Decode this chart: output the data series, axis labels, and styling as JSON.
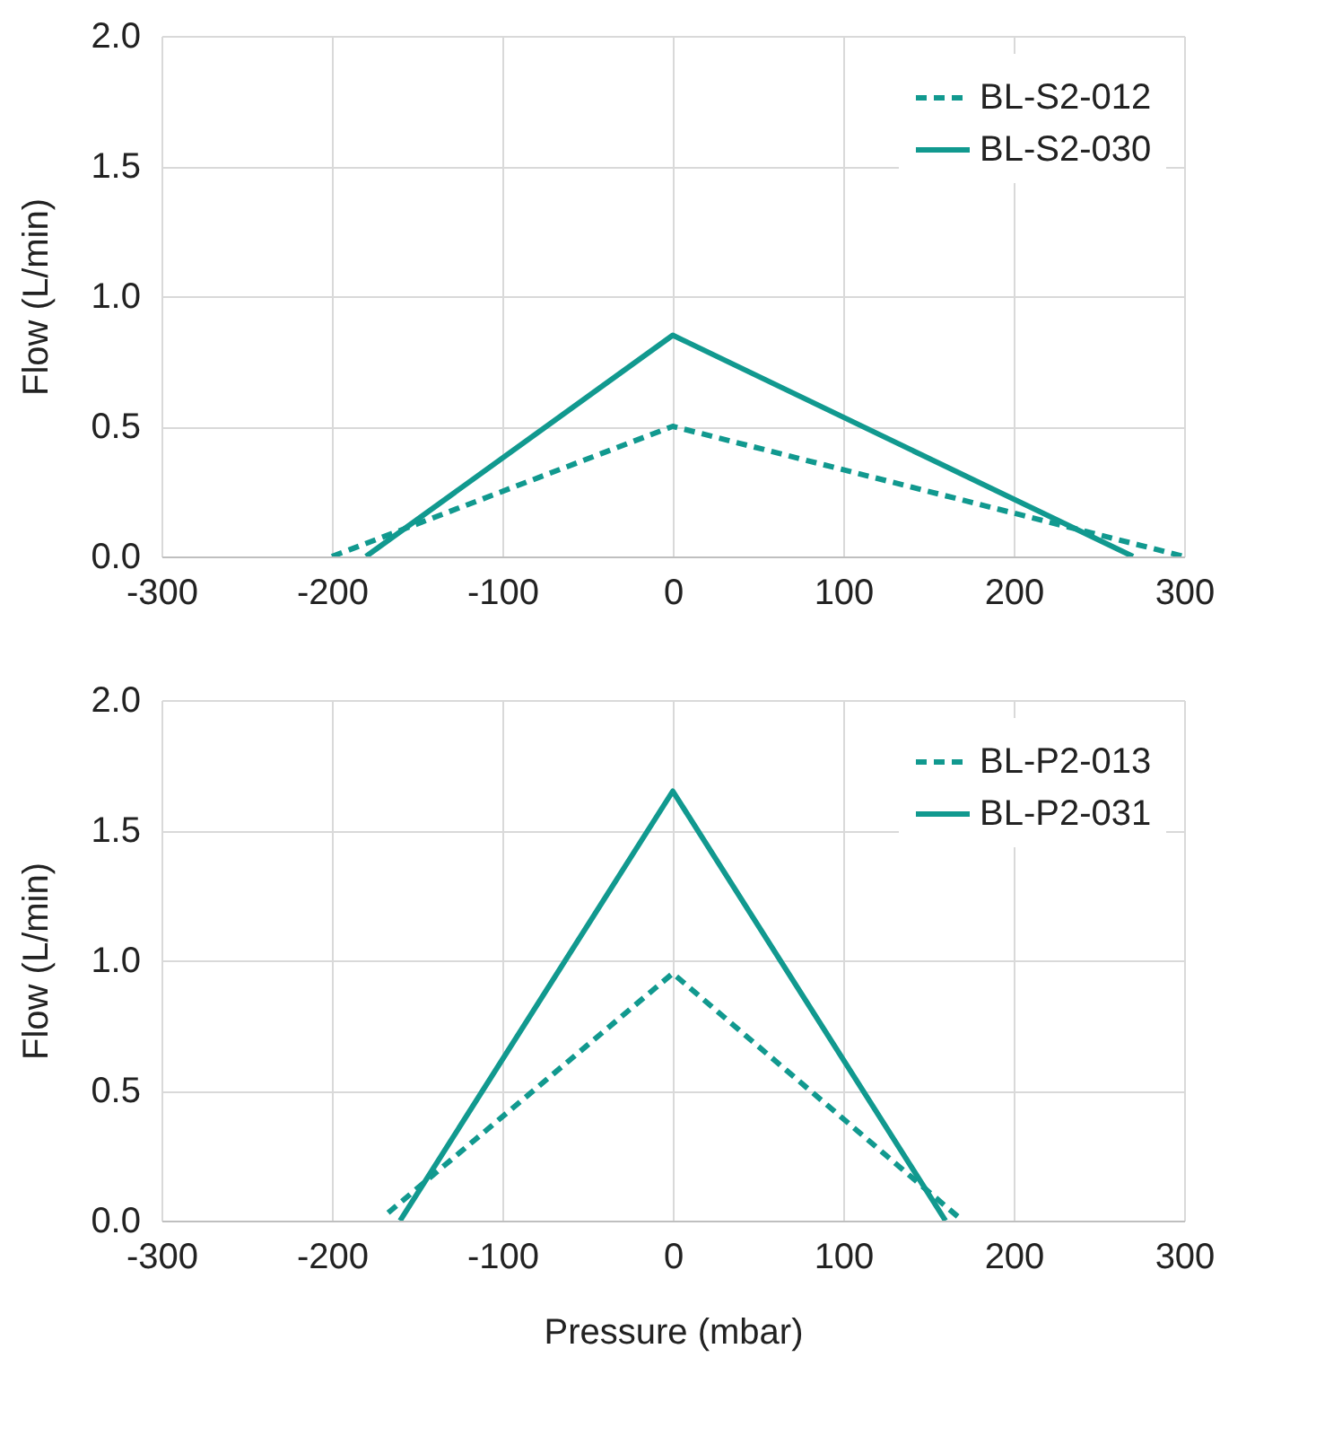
{
  "chart_data": [
    {
      "type": "line",
      "ylabel": "Flow (L/min)",
      "xlim": [
        -300,
        300
      ],
      "xticks": [
        -300,
        -200,
        -100,
        0,
        100,
        200,
        300
      ],
      "ylim": [
        0,
        2
      ],
      "yticks": [
        {
          "value": 0,
          "label": "0.0"
        },
        {
          "value": 0.5,
          "label": "0.5"
        },
        {
          "value": 1,
          "label": "1.0"
        },
        {
          "value": 1.5,
          "label": "1.5"
        },
        {
          "value": 2,
          "label": "2.0"
        }
      ],
      "grid": true,
      "legend": "top right",
      "marker": "none",
      "series": [
        {
          "name": "BL-S2-012",
          "color": "#11998f",
          "line_style": "dashed",
          "x": [
            -200,
            0,
            300
          ],
          "values": [
            0,
            0.5,
            0
          ]
        },
        {
          "name": "BL-S2-030",
          "color": "#11998f",
          "line_style": "solid",
          "x": [
            -180,
            0,
            270
          ],
          "values": [
            0,
            0.85,
            0
          ]
        }
      ]
    },
    {
      "type": "line",
      "xlabel": "Pressure (mbar)",
      "ylabel": "Flow (L/min)",
      "xlim": [
        -300,
        300
      ],
      "xticks": [
        -300,
        -200,
        -100,
        0,
        100,
        200,
        300
      ],
      "ylim": [
        0,
        2
      ],
      "yticks": [
        {
          "value": 0,
          "label": "0.0"
        },
        {
          "value": 0.5,
          "label": "0.5"
        },
        {
          "value": 1,
          "label": "1.0"
        },
        {
          "value": 1.5,
          "label": "1.5"
        },
        {
          "value": 2,
          "label": "2.0"
        }
      ],
      "grid": true,
      "legend": "top right",
      "marker": "none",
      "series": [
        {
          "name": "BL-P2-013",
          "color": "#11998f",
          "line_style": "dashed",
          "x": [
            -167,
            0,
            170
          ],
          "values": [
            0.03,
            0.95,
            0
          ]
        },
        {
          "name": "BL-P2-031",
          "color": "#11998f",
          "line_style": "solid",
          "x": [
            -160,
            0,
            160
          ],
          "values": [
            0,
            1.65,
            0
          ]
        }
      ]
    }
  ]
}
